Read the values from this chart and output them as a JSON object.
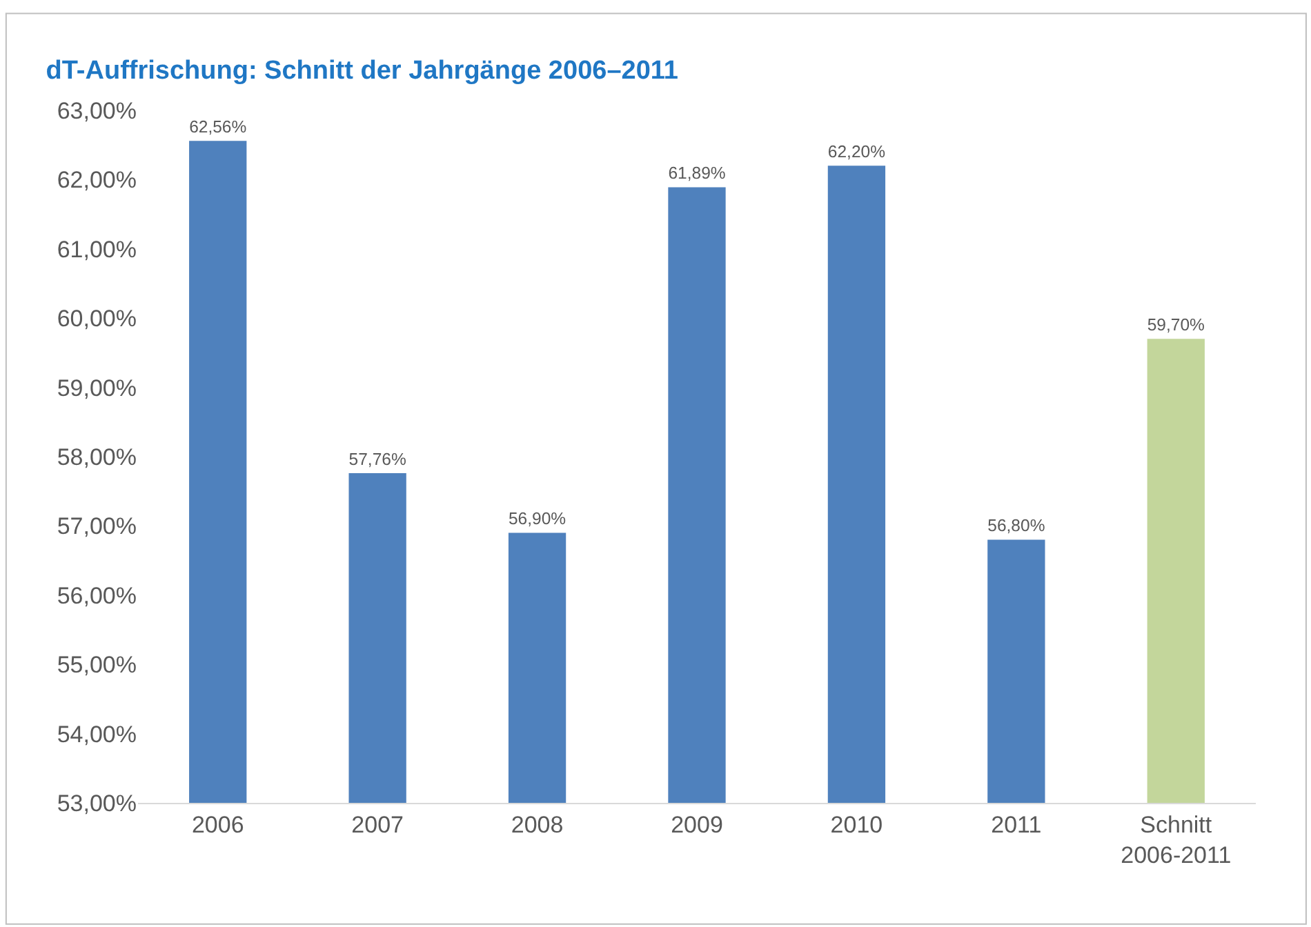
{
  "chart_data": {
    "type": "bar",
    "title": "dT-Auffrischung: Schnitt der Jahrgänge 2006–2011",
    "categories": [
      "2006",
      "2007",
      "2008",
      "2009",
      "2010",
      "2011",
      "Schnitt\n2006-2011"
    ],
    "values": [
      62.56,
      57.76,
      56.9,
      61.89,
      62.2,
      56.8,
      59.7
    ],
    "colors": [
      "#4f81bd",
      "#4f81bd",
      "#4f81bd",
      "#4f81bd",
      "#4f81bd",
      "#4f81bd",
      "#c3d69b"
    ],
    "value_labels": [
      "62,56%",
      "57,76%",
      "56,90%",
      "61,89%",
      "62,20%",
      "56,80%",
      "59,70%"
    ],
    "ylim": [
      53,
      63
    ],
    "yticks": [
      {
        "value": 53,
        "label": "53,00%"
      },
      {
        "value": 54,
        "label": "54,00%"
      },
      {
        "value": 55,
        "label": "55,00%"
      },
      {
        "value": 56,
        "label": "56,00%"
      },
      {
        "value": 57,
        "label": "57,00%"
      },
      {
        "value": 58,
        "label": "58,00%"
      },
      {
        "value": 59,
        "label": "59,00%"
      },
      {
        "value": 60,
        "label": "60,00%"
      },
      {
        "value": 61,
        "label": "61,00%"
      },
      {
        "value": 62,
        "label": "62,00%"
      },
      {
        "value": 63,
        "label": "63,00%"
      }
    ],
    "grid": false
  }
}
